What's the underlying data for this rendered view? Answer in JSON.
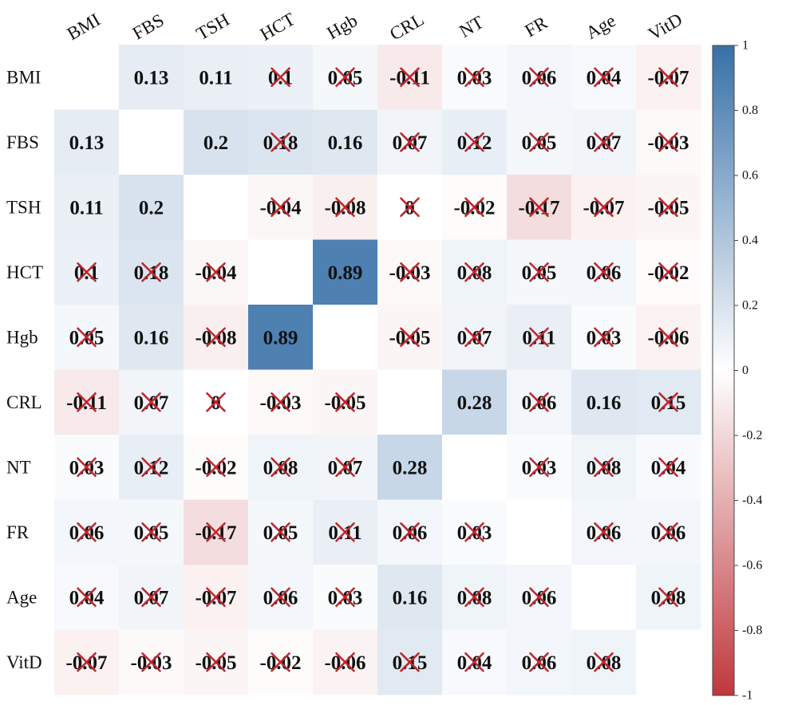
{
  "chart_data": {
    "type": "heatmap",
    "title": "",
    "variables": [
      "BMI",
      "FBS",
      "TSH",
      "HCT",
      "Hgb",
      "CRL",
      "NT",
      "FR",
      "Age",
      "VitD"
    ],
    "matrix": [
      [
        null,
        0.13,
        0.11,
        0.1,
        0.05,
        -0.11,
        0.03,
        0.06,
        0.04,
        -0.07
      ],
      [
        0.13,
        null,
        0.2,
        0.18,
        0.16,
        0.07,
        0.12,
        0.05,
        0.07,
        -0.03
      ],
      [
        0.11,
        0.2,
        null,
        -0.04,
        -0.08,
        0,
        -0.02,
        -0.17,
        -0.07,
        -0.05
      ],
      [
        0.1,
        0.18,
        -0.04,
        null,
        0.89,
        -0.03,
        0.08,
        0.05,
        0.06,
        -0.02
      ],
      [
        0.05,
        0.16,
        -0.08,
        0.89,
        null,
        -0.05,
        0.07,
        0.11,
        0.03,
        -0.06
      ],
      [
        -0.11,
        0.07,
        0,
        -0.03,
        -0.05,
        null,
        0.28,
        0.06,
        0.16,
        0.15
      ],
      [
        0.03,
        0.12,
        -0.02,
        0.08,
        0.07,
        0.28,
        null,
        0.03,
        0.08,
        0.04
      ],
      [
        0.06,
        0.05,
        -0.17,
        0.05,
        0.11,
        0.06,
        0.03,
        null,
        0.06,
        0.06
      ],
      [
        0.04,
        0.07,
        -0.07,
        0.06,
        0.03,
        0.16,
        0.08,
        0.06,
        null,
        0.08
      ],
      [
        -0.07,
        -0.03,
        -0.05,
        -0.02,
        -0.06,
        0.15,
        0.04,
        0.06,
        0.08,
        null
      ]
    ],
    "labels": [
      [
        "",
        "0.13",
        "0.11",
        "0.1",
        "0.05",
        "-0.11",
        "0.03",
        "0.06",
        "0.04",
        "-0.07"
      ],
      [
        "0.13",
        "",
        "0.2",
        "0.18",
        "0.16",
        "0.07",
        "0.12",
        "0.05",
        "0.07",
        "-0.03"
      ],
      [
        "0.11",
        "0.2",
        "",
        "-0.04",
        "-0.08",
        "0",
        "-0.02",
        "-0.17",
        "-0.07",
        "-0.05"
      ],
      [
        "0.1",
        "0.18",
        "-0.04",
        "",
        "0.89",
        "-0.03",
        "0.08",
        "0.05",
        "0.06",
        "-0.02"
      ],
      [
        "0.05",
        "0.16",
        "-0.08",
        "0.89",
        "",
        "-0.05",
        "0.07",
        "0.11",
        "0.03",
        "-0.06"
      ],
      [
        "-0.11",
        "0.07",
        "0",
        "-0.03",
        "-0.05",
        "",
        "0.28",
        "0.06",
        "0.16",
        "0.15"
      ],
      [
        "0.03",
        "0.12",
        "-0.02",
        "0.08",
        "0.07",
        "0.28",
        "",
        "0.03",
        "0.08",
        "0.04"
      ],
      [
        "0.06",
        "0.05",
        "-0.17",
        "0.05",
        "0.11",
        "0.06",
        "0.03",
        "",
        "0.06",
        "0.06"
      ],
      [
        "0.04",
        "0.07",
        "-0.07",
        "0.06",
        "0.03",
        "0.16",
        "0.08",
        "0.06",
        "",
        "0.08"
      ],
      [
        "-0.07",
        "-0.03",
        "-0.05",
        "-0.02",
        "-0.06",
        "0.15",
        "0.04",
        "0.06",
        "0.08",
        ""
      ]
    ],
    "insignificant_marked": [
      [
        false,
        false,
        false,
        true,
        true,
        true,
        true,
        true,
        true,
        true
      ],
      [
        false,
        false,
        false,
        true,
        false,
        true,
        true,
        true,
        true,
        true
      ],
      [
        false,
        false,
        false,
        true,
        true,
        true,
        true,
        true,
        true,
        true
      ],
      [
        true,
        true,
        true,
        false,
        false,
        true,
        true,
        true,
        true,
        true
      ],
      [
        true,
        false,
        true,
        false,
        false,
        true,
        true,
        true,
        true,
        true
      ],
      [
        true,
        true,
        true,
        true,
        true,
        false,
        false,
        true,
        false,
        true
      ],
      [
        true,
        true,
        true,
        true,
        true,
        false,
        false,
        true,
        true,
        true
      ],
      [
        true,
        true,
        true,
        true,
        true,
        true,
        true,
        false,
        true,
        true
      ],
      [
        true,
        true,
        true,
        true,
        true,
        false,
        true,
        true,
        false,
        true
      ],
      [
        true,
        true,
        true,
        true,
        true,
        true,
        true,
        true,
        true,
        false
      ]
    ],
    "colorbar": {
      "range": [
        -1,
        1
      ],
      "ticks": [
        1,
        0.8,
        0.6,
        0.4,
        0.2,
        0,
        -0.2,
        -0.4,
        -0.6,
        -0.8,
        -1
      ],
      "tick_labels": [
        "1",
        "0.8",
        "0.6",
        "0.4",
        "0.2",
        "0",
        "-0.2",
        "-0.4",
        "-0.6",
        "-0.8",
        "-1"
      ],
      "placement": "right"
    },
    "colors": {
      "negative": "#c0373d",
      "zero": "#ffffff",
      "positive": "#3870a8",
      "cross": "#c0262d"
    },
    "xlabel": "",
    "ylabel": ""
  }
}
